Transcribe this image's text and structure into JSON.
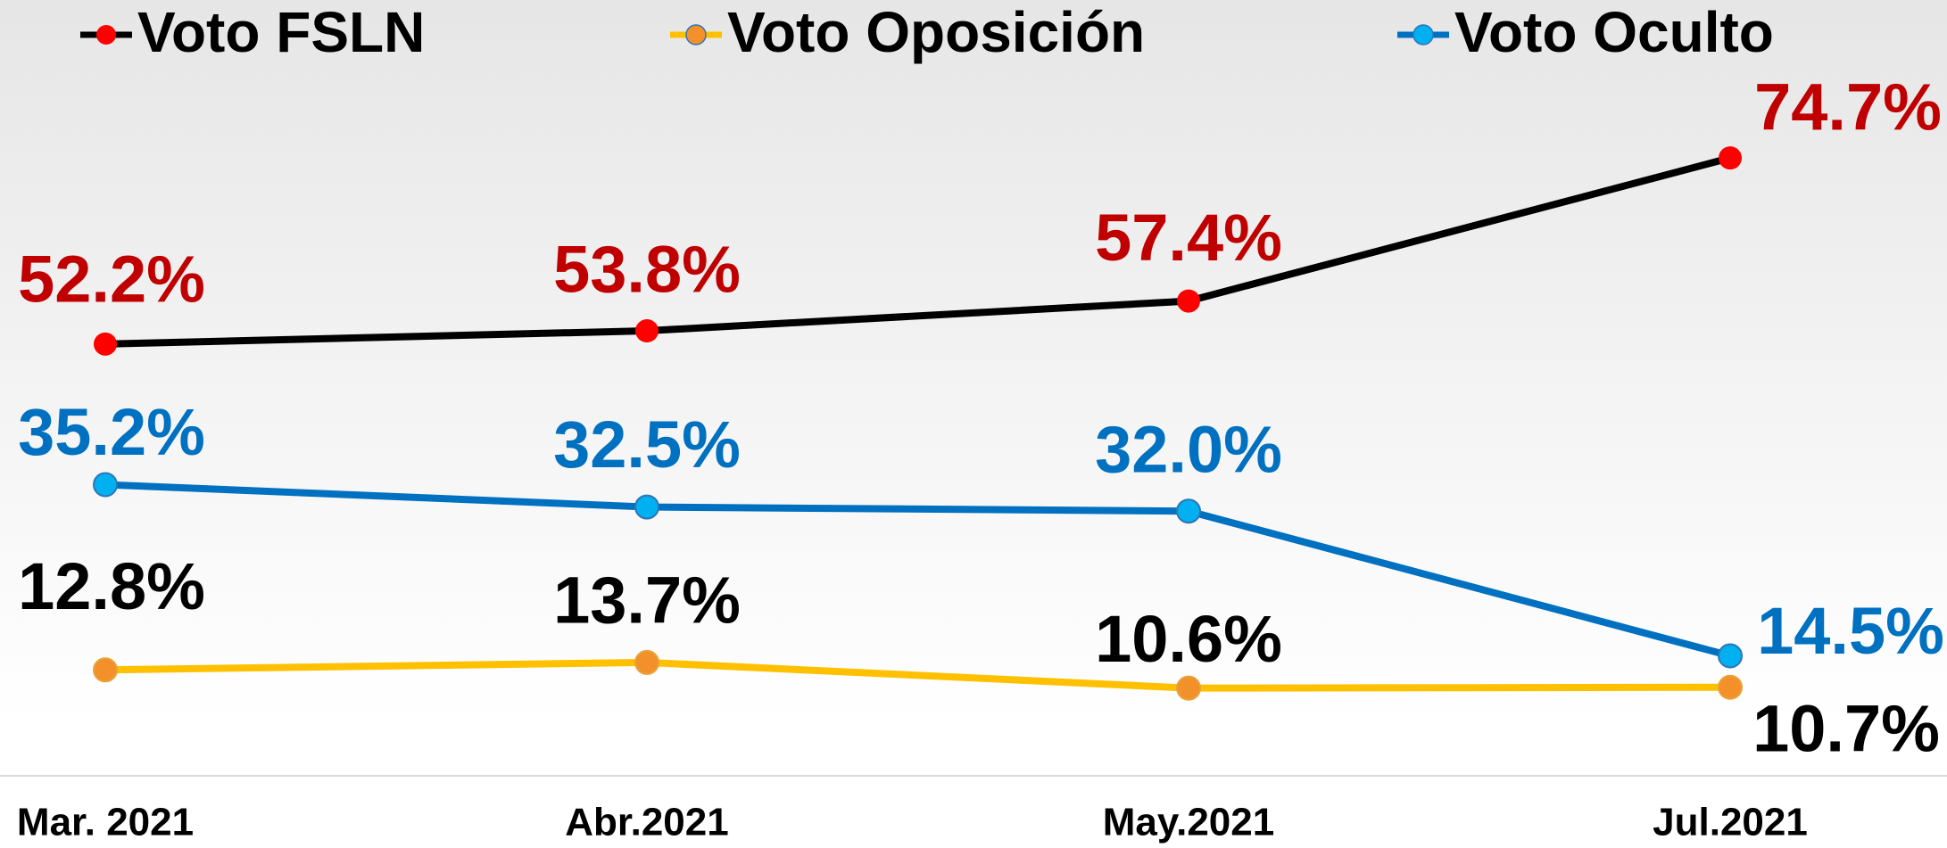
{
  "chart_data": {
    "type": "line",
    "categories": [
      "Mar. 2021",
      "Abr.2021",
      "May.2021",
      "Jul.2021"
    ],
    "ylim": [
      0,
      80
    ],
    "series": [
      {
        "name": "Voto FSLN",
        "color": "#000000",
        "marker_color": "#ff0000",
        "label_color": "#c00000",
        "values": [
          52.2,
          53.8,
          57.4,
          74.7
        ],
        "value_labels": [
          "52.2%",
          "53.8%",
          "57.4%",
          "74.7%"
        ]
      },
      {
        "name": "Voto Oposición",
        "color": "#ffc000",
        "marker_color": "#f4902a",
        "label_color": "#000000",
        "values": [
          12.8,
          13.7,
          10.6,
          10.7
        ],
        "value_labels": [
          "12.8%",
          "13.7%",
          "10.6%",
          "10.7%"
        ]
      },
      {
        "name": "Voto Oculto",
        "color": "#0070c0",
        "marker_color": "#00b0f0",
        "label_color": "#0070c0",
        "values": [
          35.2,
          32.5,
          32.0,
          14.5
        ],
        "value_labels": [
          "35.2%",
          "32.5%",
          "32.0%",
          "14.5%"
        ]
      }
    ]
  }
}
